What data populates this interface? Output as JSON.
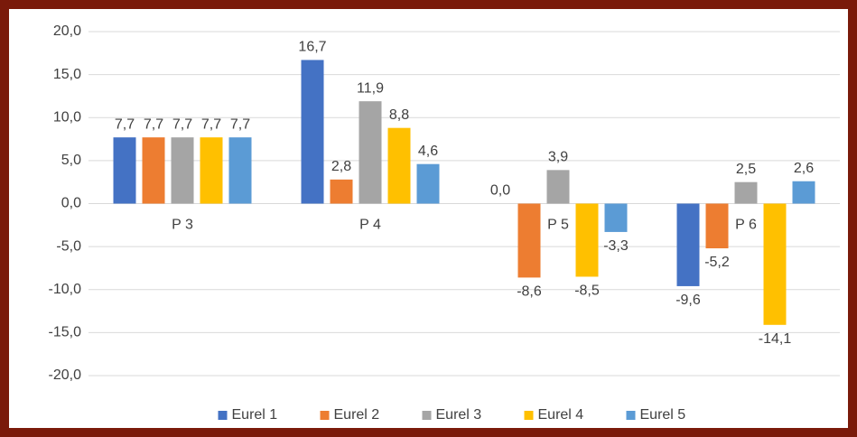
{
  "chart_data": {
    "type": "bar",
    "categories": [
      "P 3",
      "P 4",
      "P 5",
      "P 6"
    ],
    "series": [
      {
        "name": "Eurel 1",
        "color": "#4472c4",
        "values": [
          7.7,
          16.7,
          0.0,
          -9.6
        ],
        "value_labels": [
          "7,7",
          "16,7",
          "0,0",
          "-9,6"
        ]
      },
      {
        "name": "Eurel 2",
        "color": "#ed7d31",
        "values": [
          7.7,
          2.8,
          -8.6,
          -5.2
        ],
        "value_labels": [
          "7,7",
          "2,8",
          "-8,6",
          "-5,2"
        ]
      },
      {
        "name": "Eurel 3",
        "color": "#a5a5a5",
        "values": [
          7.7,
          11.9,
          3.9,
          2.5
        ],
        "value_labels": [
          "7,7",
          "11,9",
          "3,9",
          "2,5"
        ]
      },
      {
        "name": "Eurel 4",
        "color": "#ffc000",
        "values": [
          7.7,
          8.8,
          -8.5,
          -14.1
        ],
        "value_labels": [
          "7,7",
          "8,8",
          "-8,5",
          "-14,1"
        ]
      },
      {
        "name": "Eurel 5",
        "color": "#5b9bd5",
        "values": [
          7.7,
          4.6,
          -3.3,
          2.6
        ],
        "value_labels": [
          "7,7",
          "4,6",
          "-3,3",
          "2,6"
        ]
      }
    ],
    "ylim": [
      -20,
      20
    ],
    "yticks": [
      {
        "value": -20,
        "label": "-20,0"
      },
      {
        "value": -15,
        "label": "-15,0"
      },
      {
        "value": -10,
        "label": "-10,0"
      },
      {
        "value": -5,
        "label": "-5,0"
      },
      {
        "value": 0,
        "label": "0,0"
      },
      {
        "value": 5,
        "label": "5,0"
      },
      {
        "value": 10,
        "label": "10,0"
      },
      {
        "value": 15,
        "label": "15,0"
      },
      {
        "value": 20,
        "label": "20,0"
      }
    ],
    "grid": true,
    "legend": "bottom"
  }
}
